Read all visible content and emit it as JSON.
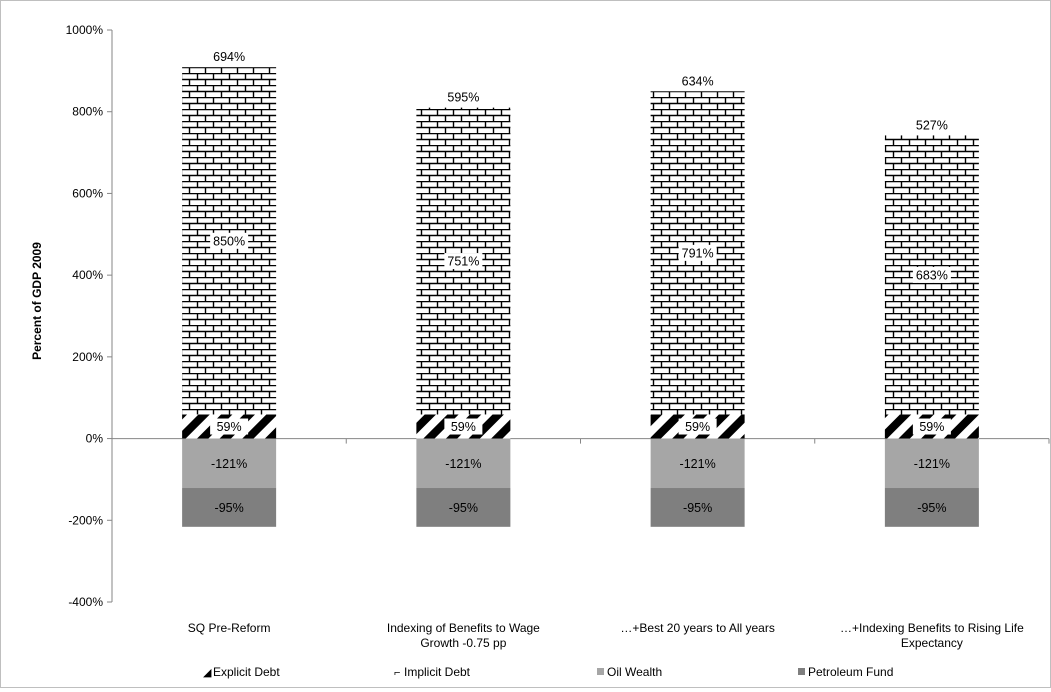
{
  "chart_data": {
    "type": "bar",
    "stacked": true,
    "ylabel": "Percent of GDP 2009",
    "xlabel": "",
    "ylim": [
      -400,
      1000
    ],
    "y_ticks": [
      -400,
      -200,
      0,
      200,
      400,
      600,
      800,
      1000
    ],
    "y_tick_labels": [
      "-400%",
      "-200%",
      "0%",
      "200%",
      "400%",
      "600%",
      "800%",
      "1000%"
    ],
    "categories": [
      [
        "SQ Pre-Reform"
      ],
      [
        "Indexing of Benefits to Wage",
        "Growth -0.75 pp"
      ],
      [
        "…+Best 20 years to All years"
      ],
      [
        "…+Indexing Benefits to Rising Life",
        "Expectancy"
      ]
    ],
    "series": [
      {
        "name": "Explicit Debt",
        "values": [
          59,
          59,
          59,
          59
        ],
        "labels": [
          "59%",
          "59%",
          "59%",
          "59%"
        ],
        "color": "#000000",
        "legend_marker": "◢"
      },
      {
        "name": "Implicit Debt",
        "values": [
          850,
          751,
          791,
          683
        ],
        "labels": [
          "850%",
          "751%",
          "791%",
          "683%"
        ],
        "color": "#000000",
        "legend_marker": "⌐"
      },
      {
        "name": "Oil Wealth",
        "values": [
          -121,
          -121,
          -121,
          -121
        ],
        "labels": [
          "-121%",
          "-121%",
          "-121%",
          "-121%"
        ],
        "color": "#a6a6a6"
      },
      {
        "name": "Petroleum Fund",
        "values": [
          -95,
          -95,
          -95,
          -95
        ],
        "labels": [
          "-95%",
          "-95%",
          "-95%",
          "-95%"
        ],
        "color": "#7f7f7f"
      }
    ],
    "top_labels": [
      "694%",
      "595%",
      "634%",
      "527%"
    ],
    "grid": false,
    "legend_position": "bottom"
  }
}
